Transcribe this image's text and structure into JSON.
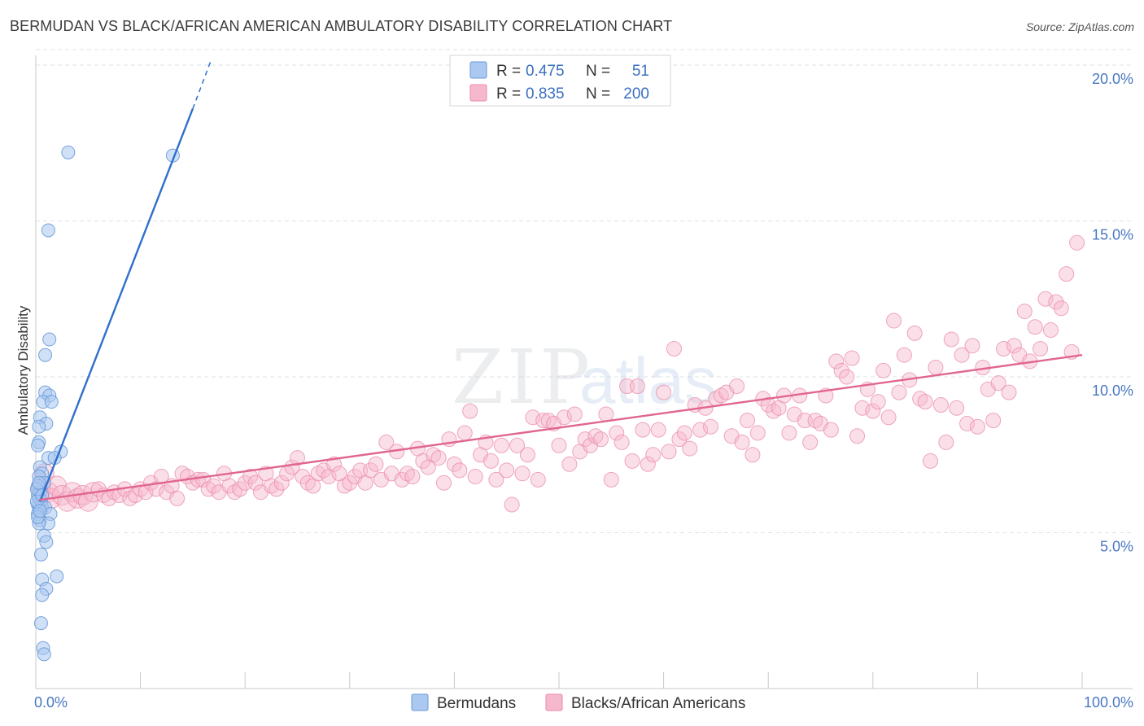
{
  "title": "BERMUDAN VS BLACK/AFRICAN AMERICAN AMBULATORY DISABILITY CORRELATION CHART",
  "source": "Source: ZipAtlas.com",
  "watermark": {
    "zip": "ZIP",
    "atlas": "atlas"
  },
  "colors": {
    "blue_fill": "#aac8f0",
    "blue_stroke": "#6a9ad8",
    "blue_line": "#2f6fcc",
    "pink_fill": "#f6b8cc",
    "pink_stroke": "#e98aaa",
    "pink_line": "#e0668f",
    "grid": "#dde3ea",
    "tick_text": "#4a78c2"
  },
  "legend": {
    "rows": [
      {
        "r_label": "R =",
        "r_value": "0.475",
        "n_label": "N =",
        "n_value": "51"
      },
      {
        "r_label": "R =",
        "r_value": "0.835",
        "n_label": "N =",
        "n_value": "200"
      }
    ]
  },
  "bottom_legend": [
    "Bermudans",
    "Blacks/African Americans"
  ],
  "chart_data": {
    "type": "scatter",
    "title": "BERMUDAN VS BLACK/AFRICAN AMERICAN AMBULATORY DISABILITY CORRELATION CHART",
    "xlabel": "",
    "ylabel": "Ambulatory Disability",
    "xlim": [
      0,
      100
    ],
    "ylim": [
      0,
      20.5
    ],
    "x_tick_labels": [
      "0.0%",
      "100.0%"
    ],
    "y_ticks": [
      5,
      10,
      15,
      20
    ],
    "y_tick_labels": [
      "5.0%",
      "10.0%",
      "15.0%",
      "20.0%"
    ],
    "grid": true,
    "legend_position": "top-center",
    "series": [
      {
        "name": "Bermudans",
        "r": 0.475,
        "n": 51,
        "trend": {
          "x": [
            0.4,
            15.0
          ],
          "y": [
            6.0,
            18.6
          ],
          "dashed_to": [
            16.8,
            20.2
          ]
        },
        "points": [
          [
            3.1,
            17.2
          ],
          [
            13.1,
            17.1
          ],
          [
            1.2,
            14.7
          ],
          [
            1.3,
            11.2
          ],
          [
            0.9,
            10.7
          ],
          [
            0.9,
            9.5
          ],
          [
            1.3,
            9.4
          ],
          [
            0.7,
            9.2
          ],
          [
            1.5,
            9.2
          ],
          [
            0.4,
            8.7
          ],
          [
            1.0,
            8.5
          ],
          [
            0.3,
            8.4
          ],
          [
            0.3,
            7.9
          ],
          [
            0.2,
            7.8
          ],
          [
            2.4,
            7.6
          ],
          [
            1.2,
            7.4
          ],
          [
            1.8,
            7.4
          ],
          [
            0.4,
            7.1
          ],
          [
            0.6,
            6.9
          ],
          [
            0.3,
            6.8
          ],
          [
            0.8,
            6.6
          ],
          [
            0.2,
            6.5
          ],
          [
            0.4,
            6.3
          ],
          [
            0.2,
            6.2
          ],
          [
            0.3,
            6.1
          ],
          [
            0.5,
            6.0
          ],
          [
            0.2,
            5.9
          ],
          [
            0.3,
            5.8
          ],
          [
            0.6,
            5.8
          ],
          [
            0.9,
            5.8
          ],
          [
            0.2,
            5.6
          ],
          [
            1.4,
            5.6
          ],
          [
            0.4,
            5.4
          ],
          [
            1.2,
            5.3
          ],
          [
            0.3,
            5.3
          ],
          [
            0.8,
            4.9
          ],
          [
            1.0,
            4.7
          ],
          [
            0.5,
            4.3
          ],
          [
            0.6,
            3.5
          ],
          [
            2.0,
            3.6
          ],
          [
            1.0,
            3.2
          ],
          [
            0.6,
            3.0
          ],
          [
            0.5,
            2.1
          ],
          [
            0.7,
            1.3
          ],
          [
            0.8,
            1.1
          ],
          [
            0.1,
            6.4
          ],
          [
            0.1,
            6.0
          ],
          [
            0.2,
            5.5
          ],
          [
            0.6,
            6.2
          ],
          [
            0.3,
            6.6
          ],
          [
            0.4,
            5.7
          ]
        ]
      },
      {
        "name": "Blacks/African Americans",
        "r": 0.835,
        "n": 200,
        "trend": {
          "x": [
            0.3,
            100.0
          ],
          "y": [
            6.05,
            10.7
          ]
        },
        "points": [
          [
            0.5,
            6.4
          ],
          [
            0.8,
            6.9
          ],
          [
            1.2,
            6.3
          ],
          [
            1.5,
            6.1
          ],
          [
            2.0,
            6.5
          ],
          [
            2.5,
            6.2
          ],
          [
            3.0,
            6.0
          ],
          [
            3.5,
            6.3
          ],
          [
            4.0,
            6.1
          ],
          [
            4.5,
            6.2
          ],
          [
            5.0,
            6.0
          ],
          [
            5.5,
            6.3
          ],
          [
            6.0,
            6.4
          ],
          [
            6.5,
            6.2
          ],
          [
            7.0,
            6.1
          ],
          [
            7.5,
            6.3
          ],
          [
            8.0,
            6.2
          ],
          [
            8.5,
            6.4
          ],
          [
            9.0,
            6.1
          ],
          [
            9.5,
            6.2
          ],
          [
            10.0,
            6.4
          ],
          [
            10.5,
            6.3
          ],
          [
            11.0,
            6.6
          ],
          [
            11.5,
            6.4
          ],
          [
            12.0,
            6.8
          ],
          [
            12.5,
            6.3
          ],
          [
            13.0,
            6.5
          ],
          [
            13.5,
            6.1
          ],
          [
            14.0,
            6.9
          ],
          [
            14.5,
            6.8
          ],
          [
            15.0,
            6.6
          ],
          [
            15.5,
            6.7
          ],
          [
            16.0,
            6.7
          ],
          [
            16.5,
            6.4
          ],
          [
            17.0,
            6.5
          ],
          [
            17.5,
            6.3
          ],
          [
            18.0,
            6.9
          ],
          [
            18.5,
            6.5
          ],
          [
            19.0,
            6.3
          ],
          [
            19.5,
            6.4
          ],
          [
            20.0,
            6.6
          ],
          [
            20.5,
            6.8
          ],
          [
            21.0,
            6.6
          ],
          [
            21.5,
            6.3
          ],
          [
            22.0,
            6.9
          ],
          [
            22.5,
            6.5
          ],
          [
            23.0,
            6.4
          ],
          [
            23.5,
            6.6
          ],
          [
            24.0,
            6.9
          ],
          [
            24.5,
            7.1
          ],
          [
            25.0,
            7.4
          ],
          [
            25.5,
            6.8
          ],
          [
            26.0,
            6.6
          ],
          [
            26.5,
            6.5
          ],
          [
            27.0,
            6.9
          ],
          [
            27.5,
            7.0
          ],
          [
            28.0,
            6.8
          ],
          [
            28.5,
            7.2
          ],
          [
            29.0,
            6.9
          ],
          [
            29.5,
            6.5
          ],
          [
            30.0,
            6.6
          ],
          [
            30.5,
            6.8
          ],
          [
            31.0,
            7.0
          ],
          [
            31.5,
            6.6
          ],
          [
            32.0,
            7.0
          ],
          [
            32.5,
            7.2
          ],
          [
            33.0,
            6.7
          ],
          [
            33.5,
            7.9
          ],
          [
            34.0,
            6.9
          ],
          [
            34.5,
            7.6
          ],
          [
            35.0,
            6.7
          ],
          [
            35.5,
            6.9
          ],
          [
            36.0,
            6.8
          ],
          [
            36.5,
            7.7
          ],
          [
            37.0,
            7.3
          ],
          [
            37.5,
            7.1
          ],
          [
            38.0,
            7.5
          ],
          [
            38.5,
            7.4
          ],
          [
            39.0,
            6.6
          ],
          [
            39.5,
            8.0
          ],
          [
            40.0,
            7.2
          ],
          [
            40.5,
            7.0
          ],
          [
            41.0,
            8.2
          ],
          [
            41.5,
            8.9
          ],
          [
            42.0,
            6.8
          ],
          [
            42.5,
            7.5
          ],
          [
            43.0,
            7.9
          ],
          [
            43.5,
            7.3
          ],
          [
            44.0,
            6.7
          ],
          [
            44.5,
            7.8
          ],
          [
            45.0,
            7.0
          ],
          [
            45.5,
            5.9
          ],
          [
            46.0,
            7.8
          ],
          [
            46.5,
            6.9
          ],
          [
            47.0,
            7.5
          ],
          [
            47.5,
            8.7
          ],
          [
            48.0,
            6.7
          ],
          [
            48.5,
            8.6
          ],
          [
            49.0,
            8.6
          ],
          [
            49.5,
            8.5
          ],
          [
            50.0,
            7.8
          ],
          [
            50.5,
            8.7
          ],
          [
            51.0,
            7.2
          ],
          [
            51.5,
            8.8
          ],
          [
            52.0,
            7.6
          ],
          [
            52.5,
            8.0
          ],
          [
            53.0,
            7.8
          ],
          [
            53.5,
            8.1
          ],
          [
            54.0,
            8.0
          ],
          [
            54.5,
            8.8
          ],
          [
            55.0,
            6.7
          ],
          [
            55.5,
            8.2
          ],
          [
            56.0,
            7.9
          ],
          [
            56.5,
            9.7
          ],
          [
            57.0,
            7.3
          ],
          [
            57.5,
            9.7
          ],
          [
            58.0,
            8.3
          ],
          [
            58.5,
            7.2
          ],
          [
            59.0,
            7.5
          ],
          [
            59.5,
            8.3
          ],
          [
            60.0,
            9.5
          ],
          [
            60.5,
            7.6
          ],
          [
            61.0,
            10.9
          ],
          [
            61.5,
            8.0
          ],
          [
            62.0,
            8.2
          ],
          [
            62.5,
            7.7
          ],
          [
            63.0,
            9.1
          ],
          [
            63.5,
            8.3
          ],
          [
            64.0,
            9.0
          ],
          [
            64.5,
            8.4
          ],
          [
            65.0,
            9.3
          ],
          [
            65.5,
            9.4
          ],
          [
            66.0,
            9.5
          ],
          [
            66.5,
            8.1
          ],
          [
            67.0,
            9.7
          ],
          [
            67.5,
            7.9
          ],
          [
            68.0,
            8.6
          ],
          [
            68.5,
            7.5
          ],
          [
            69.0,
            8.2
          ],
          [
            69.5,
            9.3
          ],
          [
            70.0,
            9.1
          ],
          [
            70.5,
            8.9
          ],
          [
            71.0,
            9.0
          ],
          [
            71.5,
            9.4
          ],
          [
            72.0,
            8.2
          ],
          [
            72.5,
            8.8
          ],
          [
            73.0,
            9.4
          ],
          [
            73.5,
            8.6
          ],
          [
            74.0,
            7.9
          ],
          [
            74.5,
            8.6
          ],
          [
            75.0,
            8.5
          ],
          [
            75.5,
            9.4
          ],
          [
            76.0,
            8.3
          ],
          [
            76.5,
            10.5
          ],
          [
            77.0,
            10.2
          ],
          [
            77.5,
            10.0
          ],
          [
            78.0,
            10.6
          ],
          [
            78.5,
            8.1
          ],
          [
            79.0,
            9.0
          ],
          [
            79.5,
            9.6
          ],
          [
            80.0,
            8.9
          ],
          [
            80.5,
            9.2
          ],
          [
            81.0,
            10.2
          ],
          [
            81.5,
            8.7
          ],
          [
            82.0,
            11.8
          ],
          [
            82.5,
            9.5
          ],
          [
            83.0,
            10.7
          ],
          [
            83.5,
            9.9
          ],
          [
            84.0,
            11.4
          ],
          [
            84.5,
            9.3
          ],
          [
            85.0,
            9.2
          ],
          [
            85.5,
            7.3
          ],
          [
            86.0,
            10.3
          ],
          [
            86.5,
            9.1
          ],
          [
            87.0,
            7.9
          ],
          [
            87.5,
            11.2
          ],
          [
            88.0,
            9.0
          ],
          [
            88.5,
            10.7
          ],
          [
            89.0,
            8.5
          ],
          [
            89.5,
            11.0
          ],
          [
            90.0,
            8.4
          ],
          [
            90.5,
            10.3
          ],
          [
            91.0,
            9.6
          ],
          [
            91.5,
            8.6
          ],
          [
            92.0,
            9.8
          ],
          [
            92.5,
            10.9
          ],
          [
            93.0,
            9.5
          ],
          [
            93.5,
            11.0
          ],
          [
            94.0,
            10.7
          ],
          [
            94.5,
            12.1
          ],
          [
            95.0,
            10.5
          ],
          [
            95.5,
            11.6
          ],
          [
            96.0,
            10.9
          ],
          [
            96.5,
            12.5
          ],
          [
            97.0,
            11.5
          ],
          [
            97.5,
            12.4
          ],
          [
            98.0,
            12.2
          ],
          [
            98.5,
            13.3
          ],
          [
            99.0,
            10.8
          ],
          [
            99.5,
            14.3
          ]
        ]
      }
    ]
  }
}
